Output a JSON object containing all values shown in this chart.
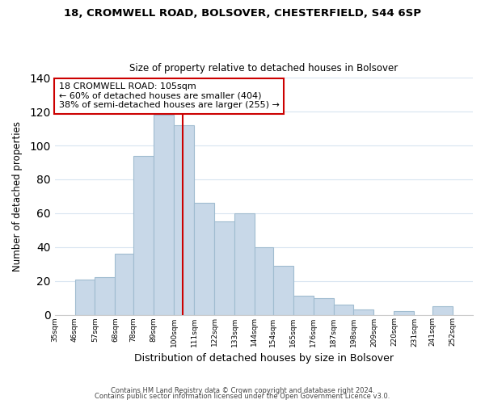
{
  "title1": "18, CROMWELL ROAD, BOLSOVER, CHESTERFIELD, S44 6SP",
  "title2": "Size of property relative to detached houses in Bolsover",
  "xlabel": "Distribution of detached houses by size in Bolsover",
  "ylabel": "Number of detached properties",
  "bar_left_edges": [
    35,
    46,
    57,
    68,
    78,
    89,
    100,
    111,
    122,
    133,
    144,
    154,
    165,
    176,
    187,
    198,
    209,
    220,
    231,
    241
  ],
  "bar_heights": [
    0,
    21,
    22,
    36,
    94,
    118,
    112,
    66,
    55,
    60,
    40,
    29,
    11,
    10,
    6,
    3,
    0,
    2,
    0,
    5
  ],
  "bar_widths": [
    11,
    11,
    11,
    10,
    11,
    11,
    11,
    11,
    11,
    11,
    10,
    11,
    11,
    11,
    11,
    11,
    11,
    11,
    10,
    11
  ],
  "bar_color": "#c8d8e8",
  "bar_edgecolor": "#a0bcd0",
  "vline_x": 105,
  "vline_color": "#cc0000",
  "annotation_line1": "18 CROMWELL ROAD: 105sqm",
  "annotation_line2": "← 60% of detached houses are smaller (404)",
  "annotation_line3": "38% of semi-detached houses are larger (255) →",
  "annotation_box_edgecolor": "#cc0000",
  "annotation_box_facecolor": "#ffffff",
  "xlim_left": 35,
  "xlim_right": 263,
  "ylim_top": 140,
  "yticks": [
    0,
    20,
    40,
    60,
    80,
    100,
    120,
    140
  ],
  "tick_labels": [
    "35sqm",
    "46sqm",
    "57sqm",
    "68sqm",
    "78sqm",
    "89sqm",
    "100sqm",
    "111sqm",
    "122sqm",
    "133sqm",
    "144sqm",
    "154sqm",
    "165sqm",
    "176sqm",
    "187sqm",
    "198sqm",
    "209sqm",
    "220sqm",
    "231sqm",
    "241sqm",
    "252sqm"
  ],
  "tick_positions": [
    35,
    46,
    57,
    68,
    78,
    89,
    100,
    111,
    122,
    133,
    144,
    154,
    165,
    176,
    187,
    198,
    209,
    220,
    231,
    241,
    252
  ],
  "footer_line1": "Contains HM Land Registry data © Crown copyright and database right 2024.",
  "footer_line2": "Contains public sector information licensed under the Open Government Licence v3.0.",
  "background_color": "#ffffff",
  "grid_color": "#d8e4f0"
}
